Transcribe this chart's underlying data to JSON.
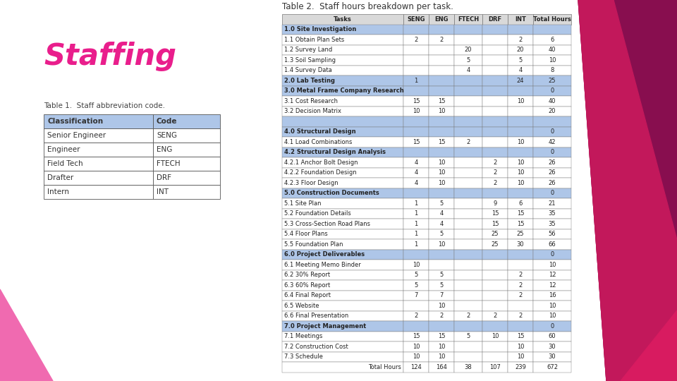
{
  "title_table2": "Table 2.  Staff hours breakdown per task.",
  "title_table1": "Table 1.  Staff abbreviation code.",
  "staffing_label": "Staffing",
  "table2_headers": [
    "Tasks",
    "SENG",
    "ENG",
    "FTECH",
    "DRF",
    "INT",
    "Total Hours"
  ],
  "table2_rows": [
    [
      "1.0 Site Investigation",
      "",
      "",
      "",
      "",
      "",
      ""
    ],
    [
      "1.1 Obtain Plan Sets",
      "2",
      "2",
      "",
      "",
      "2",
      "6"
    ],
    [
      "1.2 Survey Land",
      "",
      "",
      "20",
      "",
      "20",
      "40"
    ],
    [
      "1.3 Soil Sampling",
      "",
      "",
      "5",
      "",
      "5",
      "10"
    ],
    [
      "1.4 Survey Data",
      "",
      "",
      "4",
      "",
      "4",
      "8"
    ],
    [
      "2.0 Lab Testing",
      "1",
      "",
      "",
      "",
      "24",
      "25"
    ],
    [
      "3.0 Metal Frame Company Research",
      "",
      "",
      "",
      "",
      "",
      "0"
    ],
    [
      "3.1 Cost Research",
      "15",
      "15",
      "",
      "",
      "10",
      "40"
    ],
    [
      "3.2 Decision Matrix",
      "10",
      "10",
      "",
      "",
      "",
      "20"
    ],
    [
      "",
      "",
      "",
      "",
      "",
      "",
      ""
    ],
    [
      "4.0 Structural Design",
      "",
      "",
      "",
      "",
      "",
      "0"
    ],
    [
      "4.1 Load Combinations",
      "15",
      "15",
      "2",
      "",
      "10",
      "42"
    ],
    [
      "4.2 Structural Design Analysis",
      "",
      "",
      "",
      "",
      "",
      "0"
    ],
    [
      "4.2.1 Anchor Bolt Design",
      "4",
      "10",
      "",
      "2",
      "10",
      "26"
    ],
    [
      "4.2.2 Foundation Design",
      "4",
      "10",
      "",
      "2",
      "10",
      "26"
    ],
    [
      "4.2.3 Floor Design",
      "4",
      "10",
      "",
      "2",
      "10",
      "26"
    ],
    [
      "5.0 Construction Documents",
      "",
      "",
      "",
      "",
      "",
      "0"
    ],
    [
      "5.1 Site Plan",
      "1",
      "5",
      "",
      "9",
      "6",
      "21"
    ],
    [
      "5.2 Foundation Details",
      "1",
      "4",
      "",
      "15",
      "15",
      "35"
    ],
    [
      "5.3 Cross-Section Road Plans",
      "1",
      "4",
      "",
      "15",
      "15",
      "35"
    ],
    [
      "5.4 Floor Plans",
      "1",
      "5",
      "",
      "25",
      "25",
      "56"
    ],
    [
      "5.5 Foundation Plan",
      "1",
      "10",
      "",
      "25",
      "30",
      "66"
    ],
    [
      "6.0 Project Deliverables",
      "",
      "",
      "",
      "",
      "",
      "0"
    ],
    [
      "6.1 Meeting Memo Binder",
      "10",
      "",
      "",
      "",
      "",
      "10"
    ],
    [
      "6.2 30% Report",
      "5",
      "5",
      "",
      "",
      "2",
      "12"
    ],
    [
      "6.3 60% Report",
      "5",
      "5",
      "",
      "",
      "2",
      "12"
    ],
    [
      "6.4 Final Report",
      "7",
      "7",
      "",
      "",
      "2",
      "16"
    ],
    [
      "6.5 Website",
      "",
      "10",
      "",
      "",
      "",
      "10"
    ],
    [
      "6.6 Final Presentation",
      "2",
      "2",
      "2",
      "2",
      "2",
      "10"
    ],
    [
      "7.0 Project Management",
      "",
      "",
      "",
      "",
      "",
      "0"
    ],
    [
      "7.1 Meetings",
      "15",
      "15",
      "5",
      "10",
      "15",
      "60"
    ],
    [
      "7.2 Construction Cost",
      "10",
      "10",
      "",
      "",
      "10",
      "30"
    ],
    [
      "7.3 Schedule",
      "10",
      "10",
      "",
      "",
      "10",
      "30"
    ],
    [
      "Total Hours",
      "124",
      "164",
      "38",
      "107",
      "239",
      "672"
    ]
  ],
  "table1_headers": [
    "Classification",
    "Code"
  ],
  "table1_rows": [
    [
      "Senior Engineer",
      "SENG"
    ],
    [
      "Engineer",
      "ENG"
    ],
    [
      "Field Tech",
      "FTECH"
    ],
    [
      "Drafter",
      "DRF"
    ],
    [
      "Intern",
      "INT"
    ]
  ],
  "section_header_rows": [
    0,
    5,
    6,
    9,
    10,
    12,
    16,
    22,
    29
  ],
  "bg_color": "#ffffff",
  "section_bg": "#aec6e8",
  "header_bg": "#aec6e8",
  "white_bg": "#ffffff",
  "staffing_color": "#e91e8c",
  "left_tri_color": "#f06ab0",
  "right_color1": "#c2185b",
  "right_color2": "#ad1457",
  "right_color3": "#880e4f"
}
